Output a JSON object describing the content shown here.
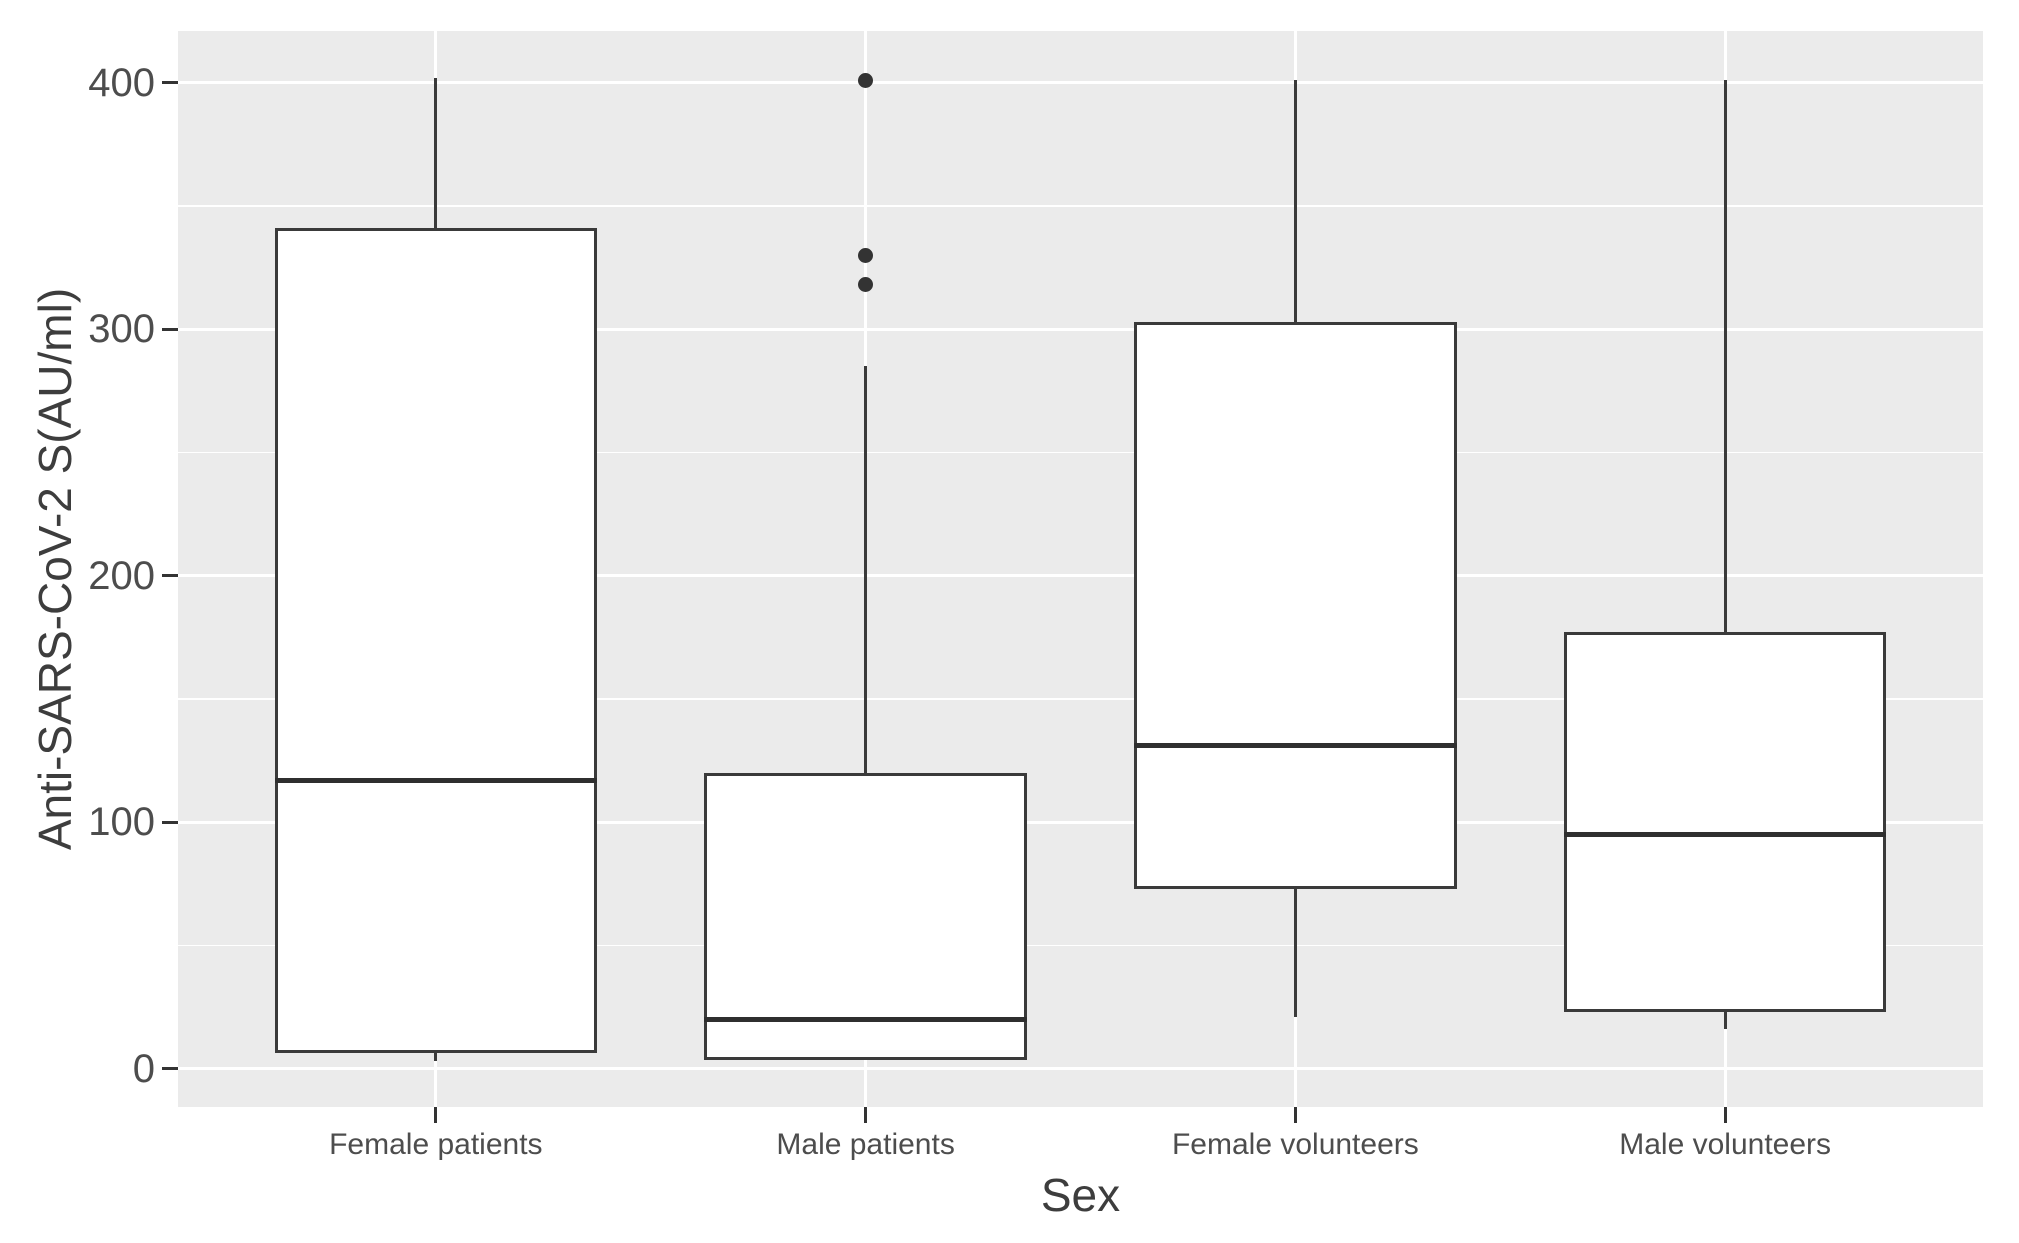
{
  "chart_data": {
    "type": "boxplot",
    "title": "",
    "xlabel": "Sex",
    "ylabel": "Anti-SARS-CoV-2 S(AU/ml)",
    "categories": [
      "Female patients",
      "Male patients",
      "Female volunteers",
      "Male volunteers"
    ],
    "series": [
      {
        "category": "Female patients",
        "min": 3,
        "q1": 6.5,
        "median": 117,
        "q3": 341,
        "max": 402,
        "outliers": []
      },
      {
        "category": "Male patients",
        "min": 3.5,
        "q1": 3.5,
        "median": 20,
        "q3": 120,
        "max": 285,
        "outliers": [
          401,
          330,
          318
        ]
      },
      {
        "category": "Female volunteers",
        "min": 21,
        "q1": 73,
        "median": 131,
        "q3": 303,
        "max": 401,
        "outliers": []
      },
      {
        "category": "Male volunteers",
        "min": 16,
        "q1": 23,
        "median": 95,
        "q3": 177,
        "max": 401,
        "outliers": []
      }
    ],
    "y_ticks": [
      0,
      100,
      200,
      300,
      400
    ],
    "y_minor_ticks": [
      50,
      150,
      250,
      350
    ],
    "ylim": [
      -15.5,
      421
    ],
    "grid": true,
    "legend": "none",
    "colors": {
      "panel_bg": "#EBEBEB",
      "grid": "#FFFFFF",
      "box_stroke": "#3A3A3A",
      "box_fill": "#FFFFFF",
      "median": "#2F2F2F",
      "outlier": "#333333",
      "tick_mark": "#333333",
      "tick_text": "#4D4D4D",
      "title_text": "#3D3D3D"
    }
  }
}
